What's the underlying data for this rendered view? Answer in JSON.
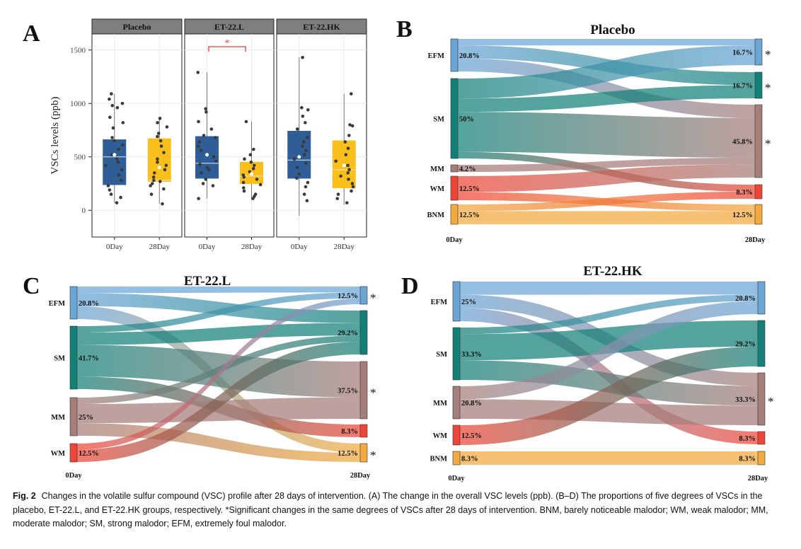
{
  "caption": {
    "label": "Fig. 2",
    "text": "Changes in the volatile sulfur compound (VSC) profile after 28 days of intervention. (A) The change in the overall VSC levels (ppb). (B–D) The proportions of five degrees of VSCs in the placebo, ET-22.L, and ET-22.HK groups, respectively. *Significant changes in the same degrees of VSCs after 28 days of intervention. BNM, barely noticeable malodor; WM, weak malodor; MM, moderate malodor; SM, strong malodor; EFM, extremely foul malodor."
  },
  "colors": {
    "EFM": "#6aa5d6",
    "SM": "#138078",
    "MM": "#a57d79",
    "WM": "#ee4636",
    "BNM": "#f2a93d",
    "box_0day": "#2f5e96",
    "box_28day": "#fbbf1c",
    "strip": "#8c8c8c",
    "sig": "#e53935"
  },
  "chart_data": [
    {
      "panel": "A",
      "type": "box",
      "ylabel": "VSCs levels (ppb)",
      "yticks": [
        "0",
        "500",
        "1000",
        "1500"
      ],
      "ylim": [
        -250,
        1650
      ],
      "facets": [
        "Placebo",
        "ET-22.L",
        "ET-22.HK"
      ],
      "categories": [
        "0Day",
        "28Day"
      ],
      "significance_label": "*",
      "significance_facet": "ET-22.L",
      "boxes": [
        {
          "facet": "Placebo",
          "group": "0Day",
          "min": 70,
          "q1": 240,
          "median": 500,
          "q3": 660,
          "max": 1090,
          "mean": 520,
          "points": [
            1090,
            1040,
            1000,
            980,
            960,
            870,
            820,
            770,
            680,
            650,
            610,
            570,
            520,
            480,
            450,
            420,
            380,
            330,
            280,
            230,
            190,
            150,
            120,
            70
          ]
        },
        {
          "facet": "Placebo",
          "group": "28Day",
          "min": 60,
          "q1": 270,
          "median": 280,
          "q3": 670,
          "max": 860,
          "mean": 400,
          "points": [
            860,
            820,
            780,
            720,
            690,
            650,
            600,
            540,
            480,
            450,
            420,
            380,
            350,
            310,
            280,
            270,
            250,
            230,
            200,
            150,
            60
          ]
        },
        {
          "facet": "ET-22.L",
          "group": "0Day",
          "min": 110,
          "q1": 300,
          "median": 440,
          "q3": 690,
          "max": 1290,
          "mean": 520,
          "points": [
            1290,
            950,
            920,
            830,
            760,
            700,
            680,
            640,
            600,
            560,
            500,
            460,
            430,
            400,
            380,
            350,
            290,
            250,
            230,
            110
          ]
        },
        {
          "facet": "ET-22.L",
          "group": "28Day",
          "min": 100,
          "q1": 250,
          "median": 320,
          "q3": 450,
          "max": 830,
          "mean": 340,
          "points": [
            830,
            570,
            520,
            480,
            450,
            420,
            390,
            360,
            330,
            310,
            290,
            260,
            240,
            210,
            180,
            150,
            130,
            110
          ]
        },
        {
          "facet": "ET-22.HK",
          "group": "0Day",
          "min": -50,
          "q1": 300,
          "median": 470,
          "q3": 740,
          "max": 1430,
          "mean": 500,
          "points": [
            1430,
            960,
            940,
            880,
            820,
            760,
            680,
            640,
            600,
            560,
            520,
            480,
            440,
            400,
            340,
            300,
            260,
            220,
            150,
            90
          ]
        },
        {
          "facet": "ET-22.HK",
          "group": "28Day",
          "min": 50,
          "q1": 210,
          "median": 380,
          "q3": 650,
          "max": 1090,
          "mean": 420,
          "points": [
            1090,
            800,
            790,
            700,
            640,
            580,
            520,
            460,
            420,
            380,
            350,
            320,
            290,
            250,
            220,
            180,
            150,
            110,
            70
          ]
        }
      ],
      "xlabels": [
        "0Day",
        "28Day",
        "0Day",
        "28Day",
        "0Day",
        "28Day"
      ]
    },
    {
      "panel": "B",
      "type": "sankey",
      "title": "Placebo",
      "categories": [
        "EFM",
        "SM",
        "MM",
        "WM",
        "BNM"
      ],
      "start_label": "0Day",
      "end_label": "28Day",
      "start": [
        {
          "cat": "EFM",
          "label": "20.8%",
          "value": 20.8
        },
        {
          "cat": "SM",
          "label": "50%",
          "value": 50
        },
        {
          "cat": "MM",
          "label": "4.2%",
          "value": 4.2
        },
        {
          "cat": "WM",
          "label": "12.5%",
          "value": 12.5
        },
        {
          "cat": "BNM",
          "label": "12.5%",
          "value": 12.5
        }
      ],
      "end": [
        {
          "cat": "EFM",
          "label": "16.7%",
          "value": 16.7,
          "sig": "*"
        },
        {
          "cat": "SM",
          "label": "16.7%",
          "value": 16.7,
          "sig": "*"
        },
        {
          "cat": "MM",
          "label": "45.8%",
          "value": 45.8,
          "sig": "*"
        },
        {
          "cat": "WM",
          "label": "8.3%",
          "value": 8.3,
          "sig": ""
        },
        {
          "cat": "BNM",
          "label": "12.5%",
          "value": 12.5,
          "sig": ""
        }
      ],
      "flows": [
        {
          "from": "EFM",
          "to": "EFM",
          "value": 4.2
        },
        {
          "from": "EFM",
          "to": "SM",
          "value": 8.3
        },
        {
          "from": "EFM",
          "to": "MM",
          "value": 8.3
        },
        {
          "from": "SM",
          "to": "EFM",
          "value": 12.5
        },
        {
          "from": "SM",
          "to": "SM",
          "value": 8.4
        },
        {
          "from": "SM",
          "to": "MM",
          "value": 25.0
        },
        {
          "from": "SM",
          "to": "WM",
          "value": 4.1
        },
        {
          "from": "MM",
          "to": "MM",
          "value": 4.2
        },
        {
          "from": "WM",
          "to": "MM",
          "value": 8.3
        },
        {
          "from": "WM",
          "to": "BNM",
          "value": 4.2
        },
        {
          "from": "BNM",
          "to": "WM",
          "value": 4.2
        },
        {
          "from": "BNM",
          "to": "BNM",
          "value": 8.3
        }
      ]
    },
    {
      "panel": "C",
      "type": "sankey",
      "title": "ET-22.L",
      "categories": [
        "EFM",
        "SM",
        "MM",
        "WM",
        "BNM"
      ],
      "start_label": "0Day",
      "end_label": "28Day",
      "start": [
        {
          "cat": "EFM",
          "label": "20.8%",
          "value": 20.8
        },
        {
          "cat": "SM",
          "label": "41.7%",
          "value": 41.7
        },
        {
          "cat": "MM",
          "label": "25%",
          "value": 25
        },
        {
          "cat": "WM",
          "label": "12.5%",
          "value": 12.5
        }
      ],
      "end": [
        {
          "cat": "EFM",
          "label": "12.5%",
          "value": 12.5,
          "sig": "*"
        },
        {
          "cat": "SM",
          "label": "29.2%",
          "value": 29.2,
          "sig": ""
        },
        {
          "cat": "MM",
          "label": "37.5%",
          "value": 37.5,
          "sig": "*"
        },
        {
          "cat": "WM",
          "label": "8.3%",
          "value": 8.3,
          "sig": ""
        },
        {
          "cat": "BNM",
          "label": "12.5%",
          "value": 12.5,
          "sig": "*"
        }
      ],
      "flows": [
        {
          "from": "EFM",
          "to": "EFM",
          "value": 4.2
        },
        {
          "from": "EFM",
          "to": "SM",
          "value": 8.3
        },
        {
          "from": "EFM",
          "to": "BNM",
          "value": 8.3
        },
        {
          "from": "SM",
          "to": "EFM",
          "value": 4.2
        },
        {
          "from": "SM",
          "to": "SM",
          "value": 8.3
        },
        {
          "from": "SM",
          "to": "MM",
          "value": 20.9
        },
        {
          "from": "SM",
          "to": "WM",
          "value": 8.3
        },
        {
          "from": "MM",
          "to": "SM",
          "value": 4.2
        },
        {
          "from": "MM",
          "to": "MM",
          "value": 12.5
        },
        {
          "from": "MM",
          "to": "BNM",
          "value": 8.3
        },
        {
          "from": "WM",
          "to": "EFM",
          "value": 4.1
        },
        {
          "from": "WM",
          "to": "SM",
          "value": 8.4
        }
      ],
      "bottom_start_label": "WM"
    },
    {
      "panel": "D",
      "type": "sankey",
      "title": "ET-22.HK",
      "categories": [
        "EFM",
        "SM",
        "MM",
        "WM",
        "BNM"
      ],
      "start_label": "0Day",
      "end_label": "28Day",
      "start": [
        {
          "cat": "EFM",
          "label": "25%",
          "value": 25
        },
        {
          "cat": "SM",
          "label": "33.3%",
          "value": 33.3
        },
        {
          "cat": "MM",
          "label": "20.8%",
          "value": 20.8
        },
        {
          "cat": "WM",
          "label": "12.5%",
          "value": 12.5
        },
        {
          "cat": "BNM",
          "label": "8.3%",
          "value": 8.3
        }
      ],
      "end": [
        {
          "cat": "EFM",
          "label": "20.8%",
          "value": 20.8,
          "sig": ""
        },
        {
          "cat": "SM",
          "label": "29.2%",
          "value": 29.2,
          "sig": ""
        },
        {
          "cat": "MM",
          "label": "33.3%",
          "value": 33.3,
          "sig": "*"
        },
        {
          "cat": "WM",
          "label": "8.3%",
          "value": 8.3,
          "sig": ""
        },
        {
          "cat": "BNM",
          "label": "8.3%",
          "value": 8.3,
          "sig": ""
        }
      ],
      "flows": [
        {
          "from": "EFM",
          "to": "EFM",
          "value": 8.3
        },
        {
          "from": "EFM",
          "to": "MM",
          "value": 8.4
        },
        {
          "from": "EFM",
          "to": "WM",
          "value": 8.3
        },
        {
          "from": "SM",
          "to": "EFM",
          "value": 4.2
        },
        {
          "from": "SM",
          "to": "SM",
          "value": 16.6
        },
        {
          "from": "SM",
          "to": "MM",
          "value": 12.5
        },
        {
          "from": "MM",
          "to": "EFM",
          "value": 8.3
        },
        {
          "from": "MM",
          "to": "MM",
          "value": 12.5
        },
        {
          "from": "WM",
          "to": "SM",
          "value": 12.6
        },
        {
          "from": "BNM",
          "to": "BNM",
          "value": 8.3
        }
      ]
    }
  ]
}
